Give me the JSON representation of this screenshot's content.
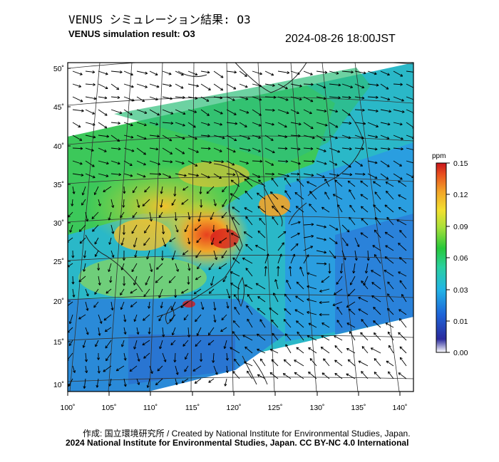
{
  "header": {
    "title_ja": "VENUS シミュレーション結果: O3",
    "title_en": "VENUS simulation result: O3",
    "timestamp": "2024-08-26 18:00JST"
  },
  "map": {
    "lat_labels": [
      "50˚",
      "45˚",
      "40˚",
      "35˚",
      "30˚",
      "25˚",
      "20˚",
      "15˚",
      "10˚"
    ],
    "lon_labels": [
      "100˚",
      "105˚",
      "110˚",
      "115˚",
      "120˚",
      "125˚",
      "130˚",
      "135˚",
      "140˚"
    ],
    "lat_values": [
      50,
      45,
      40,
      35,
      30,
      25,
      20,
      15,
      10
    ],
    "lon_values": [
      100,
      105,
      110,
      115,
      120,
      125,
      130,
      135,
      140
    ]
  },
  "colorbar": {
    "unit": "ppm",
    "ticks": [
      "0.15",
      "0.12",
      "0.09",
      "0.06",
      "0.03",
      "0.01",
      "0.00"
    ],
    "colors": [
      "#d7191c",
      "#f07d1e",
      "#f2c12e",
      "#c8e83a",
      "#27c83a",
      "#2ad0c8",
      "#1a8cd8",
      "#1e3ca8",
      "#ffffff"
    ]
  },
  "footer": {
    "credit_ja": "作成: 国立環境研究所 / Created by National Institute for Environmental Studies, Japan.",
    "copyright": "2024 National Institute for Environmental Studies, Japan. CC BY-NC 4.0 International"
  }
}
